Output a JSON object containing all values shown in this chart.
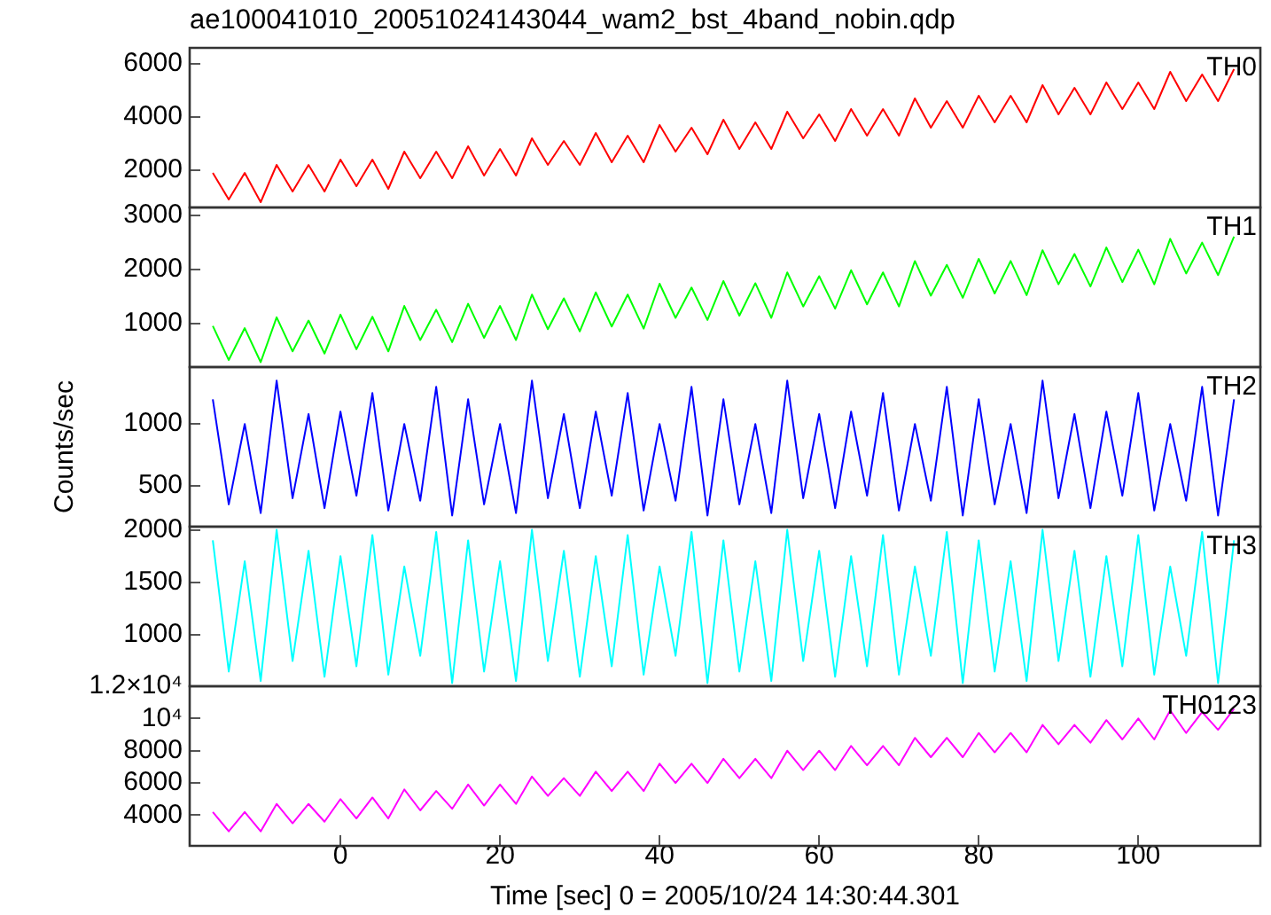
{
  "chart_data": [
    {
      "type": "line",
      "title": "ae100041010_20051024143044_wam2_bst_4band_nobin.qdp",
      "xlim": [
        -18.9,
        115.3
      ],
      "ylim": [
        600,
        6600
      ],
      "yticks": [
        2000,
        4000,
        6000
      ],
      "tick_labels": "y",
      "grid": false,
      "legend": false,
      "x": [
        -16,
        -14,
        -12,
        -10,
        -8,
        -6,
        -4,
        -2,
        0,
        2,
        4,
        6,
        8,
        10,
        12,
        14,
        16,
        18,
        20,
        22,
        24,
        26,
        28,
        30,
        32,
        34,
        36,
        38,
        40,
        42,
        44,
        46,
        48,
        50,
        52,
        54,
        56,
        58,
        60,
        62,
        64,
        66,
        68,
        70,
        72,
        74,
        76,
        78,
        80,
        82,
        84,
        86,
        88,
        90,
        92,
        94,
        96,
        98,
        100,
        102,
        104,
        106,
        108,
        110,
        112
      ],
      "series": [
        {
          "name": "TH0",
          "color": "#ff0000",
          "values": [
            1900,
            900,
            1900,
            800,
            2200,
            1200,
            2200,
            1200,
            2400,
            1400,
            2400,
            1300,
            2700,
            1700,
            2700,
            1700,
            2900,
            1800,
            2800,
            1800,
            3200,
            2200,
            3100,
            2200,
            3400,
            2300,
            3300,
            2300,
            3700,
            2700,
            3600,
            2600,
            3900,
            2800,
            3800,
            2800,
            4200,
            3200,
            4100,
            3100,
            4300,
            3300,
            4300,
            3300,
            4700,
            3600,
            4600,
            3600,
            4800,
            3800,
            4800,
            3800,
            5200,
            4100,
            5100,
            4100,
            5300,
            4300,
            5300,
            4300,
            5700,
            4600,
            5600,
            4600,
            5800
          ]
        }
      ]
    },
    {
      "type": "line",
      "xlim": [
        -18.9,
        115.3
      ],
      "ylim": [
        200,
        3150
      ],
      "yticks": [
        1000,
        2000,
        3000
      ],
      "tick_labels": "y",
      "grid": false,
      "legend": false,
      "x": [
        -16,
        -14,
        -12,
        -10,
        -8,
        -6,
        -4,
        -2,
        0,
        2,
        4,
        6,
        8,
        10,
        12,
        14,
        16,
        18,
        20,
        22,
        24,
        26,
        28,
        30,
        32,
        34,
        36,
        38,
        40,
        42,
        44,
        46,
        48,
        50,
        52,
        54,
        56,
        58,
        60,
        62,
        64,
        66,
        68,
        70,
        72,
        74,
        76,
        78,
        80,
        82,
        84,
        86,
        88,
        90,
        92,
        94,
        96,
        98,
        100,
        102,
        104,
        106,
        108,
        110,
        112
      ],
      "series": [
        {
          "name": "TH1",
          "color": "#00ff00",
          "values": [
            960,
            330,
            920,
            290,
            1120,
            490,
            1060,
            450,
            1170,
            530,
            1130,
            490,
            1330,
            700,
            1260,
            660,
            1370,
            740,
            1330,
            700,
            1540,
            900,
            1470,
            860,
            1580,
            950,
            1540,
            910,
            1740,
            1110,
            1670,
            1070,
            1790,
            1150,
            1750,
            1110,
            1950,
            1320,
            1880,
            1280,
            1990,
            1360,
            1950,
            1320,
            2160,
            1520,
            2090,
            1480,
            2200,
            1560,
            2160,
            1530,
            2360,
            1730,
            2290,
            1690,
            2410,
            1770,
            2370,
            1730,
            2570,
            1930,
            2500,
            1900,
            2610
          ]
        }
      ]
    },
    {
      "type": "line",
      "ylabel": "Counts/sec",
      "xlim": [
        -18.9,
        115.3
      ],
      "ylim": [
        170,
        1460
      ],
      "yticks": [
        500,
        1000
      ],
      "tick_labels": "y",
      "grid": false,
      "legend": false,
      "x": [
        -16,
        -14,
        -12,
        -10,
        -8,
        -6,
        -4,
        -2,
        0,
        2,
        4,
        6,
        8,
        10,
        12,
        14,
        16,
        18,
        20,
        22,
        24,
        26,
        28,
        30,
        32,
        34,
        36,
        38,
        40,
        42,
        44,
        46,
        48,
        50,
        52,
        54,
        56,
        58,
        60,
        62,
        64,
        66,
        68,
        70,
        72,
        74,
        76,
        78,
        80,
        82,
        84,
        86,
        88,
        90,
        92,
        94,
        96,
        98,
        100,
        102,
        104,
        106,
        108,
        110,
        112
      ],
      "series": [
        {
          "name": "TH2",
          "color": "#0000ff",
          "values": [
            1200,
            350,
            1000,
            280,
            1350,
            400,
            1080,
            320,
            1100,
            420,
            1250,
            300,
            1000,
            380,
            1300,
            260,
            1200,
            350,
            1000,
            280,
            1350,
            400,
            1080,
            320,
            1100,
            420,
            1250,
            300,
            1000,
            380,
            1300,
            260,
            1200,
            350,
            1000,
            280,
            1350,
            400,
            1080,
            320,
            1100,
            420,
            1250,
            300,
            1000,
            380,
            1300,
            260,
            1200,
            350,
            1000,
            280,
            1350,
            400,
            1080,
            320,
            1100,
            420,
            1250,
            300,
            1000,
            380,
            1300,
            260,
            1200
          ]
        }
      ]
    },
    {
      "type": "line",
      "xlim": [
        -18.9,
        115.3
      ],
      "ylim": [
        510,
        2030
      ],
      "yticks": [
        1000,
        1500,
        2000
      ],
      "tick_labels": "y",
      "grid": false,
      "legend": false,
      "x": [
        -16,
        -14,
        -12,
        -10,
        -8,
        -6,
        -4,
        -2,
        0,
        2,
        4,
        6,
        8,
        10,
        12,
        14,
        16,
        18,
        20,
        22,
        24,
        26,
        28,
        30,
        32,
        34,
        36,
        38,
        40,
        42,
        44,
        46,
        48,
        50,
        52,
        54,
        56,
        58,
        60,
        62,
        64,
        66,
        68,
        70,
        72,
        74,
        76,
        78,
        80,
        82,
        84,
        86,
        88,
        90,
        92,
        94,
        96,
        98,
        100,
        102,
        104,
        106,
        108,
        110,
        112
      ],
      "series": [
        {
          "name": "TH3",
          "color": "#00ffff",
          "values": [
            1900,
            650,
            1700,
            560,
            2000,
            750,
            1800,
            600,
            1750,
            700,
            1950,
            620,
            1650,
            800,
            1980,
            540,
            1900,
            650,
            1700,
            560,
            2000,
            750,
            1800,
            600,
            1750,
            700,
            1950,
            620,
            1650,
            800,
            1980,
            540,
            1900,
            650,
            1700,
            560,
            2000,
            750,
            1800,
            600,
            1750,
            700,
            1950,
            620,
            1650,
            800,
            1980,
            540,
            1900,
            650,
            1700,
            560,
            2000,
            750,
            1800,
            600,
            1750,
            700,
            1950,
            620,
            1650,
            800,
            1980,
            540,
            1900
          ]
        }
      ]
    },
    {
      "type": "line",
      "xlabel": "Time [sec] 0 = 2005/10/24 14:30:44.301",
      "xlim": [
        -18.9,
        115.3
      ],
      "ylim": [
        2100,
        12000
      ],
      "xticks": [
        0,
        20,
        40,
        60,
        80,
        100
      ],
      "yticks": [
        4000,
        6000,
        8000,
        {
          "value": 10000,
          "label": "10⁴"
        },
        {
          "value": 12000,
          "label": "1.2×10⁴"
        }
      ],
      "grid": false,
      "legend": false,
      "x": [
        -16,
        -14,
        -12,
        -10,
        -8,
        -6,
        -4,
        -2,
        0,
        2,
        4,
        6,
        8,
        10,
        12,
        14,
        16,
        18,
        20,
        22,
        24,
        26,
        28,
        30,
        32,
        34,
        36,
        38,
        40,
        42,
        44,
        46,
        48,
        50,
        52,
        54,
        56,
        58,
        60,
        62,
        64,
        66,
        68,
        70,
        72,
        74,
        76,
        78,
        80,
        82,
        84,
        86,
        88,
        90,
        92,
        94,
        96,
        98,
        100,
        102,
        104,
        106,
        108,
        110,
        112
      ],
      "series": [
        {
          "name": "TH0123",
          "color": "#ff00ff",
          "values": [
            4200,
            3000,
            4200,
            3000,
            4700,
            3500,
            4700,
            3600,
            5000,
            3800,
            5100,
            3800,
            5600,
            4300,
            5500,
            4400,
            5900,
            4600,
            5900,
            4700,
            6400,
            5200,
            6300,
            5200,
            6700,
            5500,
            6700,
            5500,
            7200,
            6000,
            7200,
            6000,
            7500,
            6300,
            7500,
            6300,
            8000,
            6800,
            8000,
            6800,
            8300,
            7100,
            8300,
            7100,
            8800,
            7600,
            8800,
            7600,
            9100,
            7900,
            9100,
            7900,
            9600,
            8400,
            9600,
            8500,
            9900,
            8700,
            10000,
            8700,
            10500,
            9100,
            10400,
            9300,
            10600
          ]
        }
      ]
    }
  ]
}
